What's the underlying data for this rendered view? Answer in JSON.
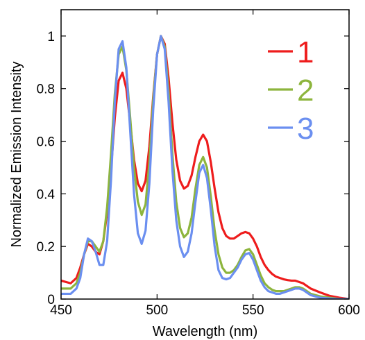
{
  "chart_data": {
    "type": "line",
    "title": "",
    "xlabel": "Wavelength (nm)",
    "ylabel": "Normalized Emission Intensity",
    "xlim": [
      450,
      600
    ],
    "ylim": [
      0,
      1.1
    ],
    "x_ticks": [
      450,
      500,
      550,
      600
    ],
    "x_tick_labels": [
      "450",
      "500",
      "550",
      "600"
    ],
    "y_ticks": [
      0,
      0.2,
      0.4,
      0.6,
      0.8,
      1
    ],
    "y_tick_labels": [
      "0",
      "0.2",
      "0.4",
      "0.6",
      "0.8",
      "1"
    ],
    "grid": false,
    "legend_position": "top-right",
    "series": [
      {
        "name": "1",
        "color": "#ee1c1c",
        "x": [
          450,
          455,
          458,
          460,
          462,
          464,
          466,
          468,
          470,
          472,
          474,
          476,
          478,
          480,
          482,
          484,
          486,
          488,
          490,
          492,
          494,
          496,
          498,
          500,
          502,
          504,
          506,
          508,
          510,
          512,
          514,
          516,
          518,
          520,
          522,
          524,
          526,
          528,
          530,
          532,
          534,
          536,
          538,
          540,
          542,
          544,
          546,
          548,
          550,
          552,
          554,
          556,
          558,
          560,
          562,
          564,
          566,
          568,
          570,
          572,
          574,
          576,
          578,
          580,
          585,
          590,
          595,
          600
        ],
        "y": [
          0.07,
          0.06,
          0.08,
          0.12,
          0.17,
          0.21,
          0.2,
          0.18,
          0.17,
          0.22,
          0.33,
          0.49,
          0.69,
          0.83,
          0.86,
          0.8,
          0.67,
          0.53,
          0.44,
          0.41,
          0.45,
          0.58,
          0.77,
          0.93,
          1.0,
          0.97,
          0.84,
          0.67,
          0.53,
          0.45,
          0.42,
          0.43,
          0.47,
          0.54,
          0.6,
          0.625,
          0.6,
          0.52,
          0.42,
          0.33,
          0.27,
          0.24,
          0.23,
          0.23,
          0.24,
          0.25,
          0.255,
          0.25,
          0.23,
          0.2,
          0.16,
          0.13,
          0.11,
          0.095,
          0.085,
          0.08,
          0.075,
          0.072,
          0.07,
          0.07,
          0.065,
          0.06,
          0.05,
          0.04,
          0.025,
          0.012,
          0.005,
          0.0
        ]
      },
      {
        "name": "2",
        "color": "#8db53d",
        "x": [
          450,
          455,
          458,
          460,
          462,
          464,
          466,
          468,
          470,
          472,
          474,
          476,
          478,
          480,
          482,
          484,
          486,
          488,
          490,
          492,
          494,
          496,
          498,
          500,
          502,
          504,
          506,
          508,
          510,
          512,
          514,
          516,
          518,
          520,
          522,
          524,
          526,
          528,
          530,
          532,
          534,
          536,
          538,
          540,
          542,
          544,
          546,
          548,
          550,
          552,
          554,
          556,
          558,
          560,
          562,
          564,
          566,
          568,
          570,
          572,
          574,
          576,
          578,
          580,
          585,
          590,
          595,
          600
        ],
        "y": [
          0.04,
          0.04,
          0.06,
          0.1,
          0.17,
          0.22,
          0.22,
          0.2,
          0.18,
          0.22,
          0.35,
          0.55,
          0.78,
          0.93,
          0.96,
          0.87,
          0.69,
          0.5,
          0.37,
          0.32,
          0.36,
          0.52,
          0.76,
          0.93,
          1.0,
          0.96,
          0.79,
          0.55,
          0.37,
          0.27,
          0.235,
          0.25,
          0.31,
          0.42,
          0.51,
          0.54,
          0.5,
          0.39,
          0.26,
          0.17,
          0.12,
          0.1,
          0.1,
          0.11,
          0.13,
          0.16,
          0.185,
          0.19,
          0.17,
          0.13,
          0.09,
          0.06,
          0.045,
          0.035,
          0.03,
          0.03,
          0.03,
          0.035,
          0.04,
          0.045,
          0.045,
          0.04,
          0.03,
          0.02,
          0.01,
          0.005,
          0.0,
          0.0
        ]
      },
      {
        "name": "3",
        "color": "#6b8ff0",
        "x": [
          450,
          455,
          458,
          460,
          462,
          464,
          466,
          468,
          470,
          472,
          474,
          476,
          478,
          480,
          482,
          484,
          486,
          488,
          490,
          492,
          494,
          496,
          498,
          500,
          502,
          504,
          506,
          508,
          510,
          512,
          514,
          516,
          518,
          520,
          522,
          524,
          526,
          528,
          530,
          532,
          534,
          536,
          538,
          540,
          542,
          544,
          546,
          548,
          550,
          552,
          554,
          556,
          558,
          560,
          562,
          564,
          566,
          568,
          570,
          572,
          574,
          576,
          578,
          580,
          585,
          590,
          595,
          600
        ],
        "y": [
          0.02,
          0.02,
          0.04,
          0.08,
          0.17,
          0.23,
          0.22,
          0.18,
          0.13,
          0.13,
          0.22,
          0.45,
          0.75,
          0.95,
          0.98,
          0.88,
          0.64,
          0.4,
          0.25,
          0.21,
          0.26,
          0.44,
          0.72,
          0.93,
          1.0,
          0.95,
          0.75,
          0.49,
          0.3,
          0.2,
          0.16,
          0.18,
          0.25,
          0.37,
          0.48,
          0.51,
          0.46,
          0.34,
          0.2,
          0.11,
          0.08,
          0.075,
          0.08,
          0.1,
          0.12,
          0.15,
          0.17,
          0.175,
          0.15,
          0.11,
          0.07,
          0.045,
          0.03,
          0.025,
          0.02,
          0.02,
          0.025,
          0.03,
          0.035,
          0.04,
          0.04,
          0.035,
          0.025,
          0.015,
          0.005,
          0.002,
          0.0,
          0.0
        ]
      }
    ]
  }
}
